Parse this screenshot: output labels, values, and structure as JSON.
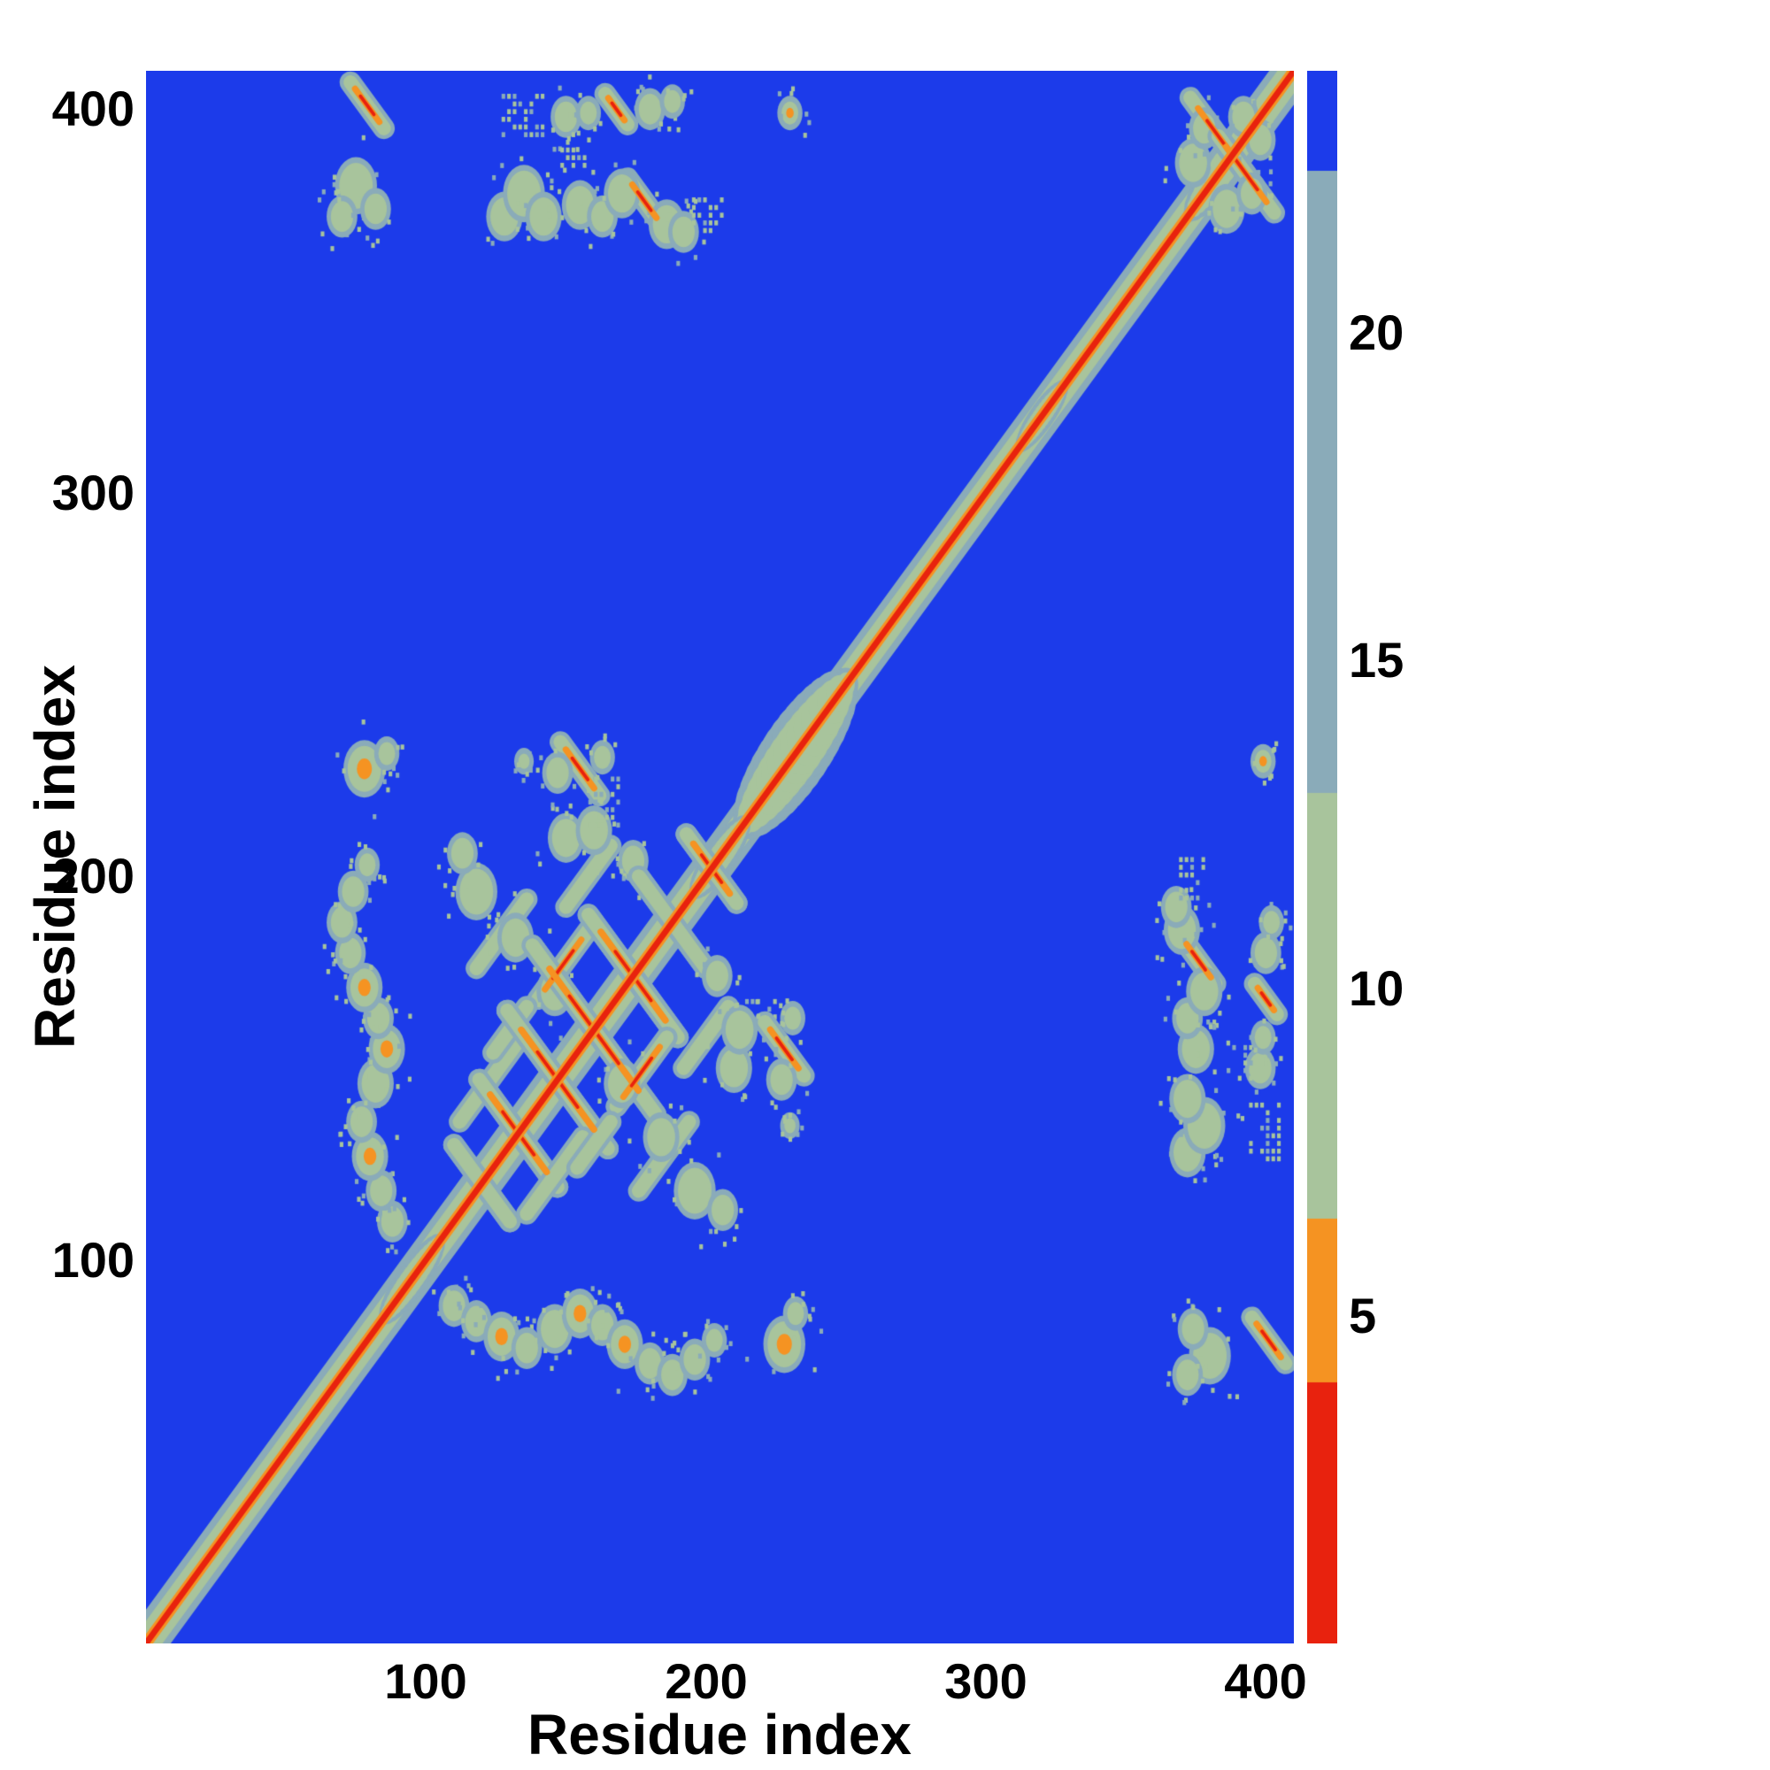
{
  "chart_data": {
    "type": "heatmap",
    "title": "",
    "xlabel": "Residue index",
    "ylabel": "Residue index",
    "x_range": [
      0,
      410
    ],
    "y_range": [
      0,
      410
    ],
    "x_ticks": [
      100,
      200,
      300,
      400
    ],
    "y_ticks": [
      100,
      200,
      300,
      400
    ],
    "x_tick_labels": [
      "100",
      "200",
      "300",
      "400"
    ],
    "y_tick_labels": [
      "100",
      "200",
      "300",
      "400"
    ],
    "grid": false,
    "legend": "colorbar-right",
    "colorbar": {
      "range": [
        0,
        24
      ],
      "ticks": [
        5,
        10,
        15,
        20
      ],
      "tick_labels": [
        "5",
        "10",
        "15",
        "20"
      ],
      "segments": [
        {
          "from": 0,
          "to": 4,
          "color": "red"
        },
        {
          "from": 4,
          "to": 6.5,
          "color": "orange"
        },
        {
          "from": 6.5,
          "to": 13,
          "color": "sage"
        },
        {
          "from": 13,
          "to": 22.5,
          "color": "slate"
        },
        {
          "from": 22.5,
          "to": 24,
          "color": "blue"
        }
      ]
    },
    "palette": {
      "blue": "#1c3bea",
      "slate": "#8aabb9",
      "sage": "#a8c49c",
      "orange": "#f59322",
      "red": "#e8220e"
    },
    "heatmap_features": {
      "description": "Symmetric residue-residue contact/distance map; red diagonal of near-zero distance, sage/orange off-diagonal contact clusters on blue (far) background. Features listed once (upper triangle) and mirrored across the diagonal.",
      "diagonal_layers": [
        {
          "color": "slate",
          "width": 12
        },
        {
          "color": "sage",
          "width": 8
        },
        {
          "color": "orange",
          "width": 3.4
        },
        {
          "color": "red",
          "width": 1.8
        }
      ],
      "bulges": [
        {
          "c": 232,
          "a": 18,
          "b": 11
        },
        {
          "c": 205,
          "a": 9,
          "b": 5
        },
        {
          "c": 95,
          "a": 10,
          "b": 5
        },
        {
          "c": 320,
          "a": 8,
          "b": 4
        },
        {
          "c": 385,
          "a": 12,
          "b": 6
        }
      ],
      "streaks": [
        [
          110,
          130,
          130,
          110,
          0
        ],
        [
          119,
          147,
          147,
          119,
          1
        ],
        [
          129,
          165,
          165,
          129,
          1
        ],
        [
          138,
          182,
          182,
          138,
          1
        ],
        [
          158,
          190,
          190,
          158,
          1
        ],
        [
          176,
          200,
          200,
          176,
          0
        ],
        [
          193,
          211,
          211,
          193,
          1
        ],
        [
          112,
          136,
          132,
          156,
          0
        ],
        [
          140,
          168,
          158,
          186,
          1
        ],
        [
          118,
          176,
          136,
          194,
          0
        ],
        [
          150,
          192,
          166,
          208,
          0
        ],
        [
          124,
          154,
          136,
          166,
          0
        ],
        [
          148,
          235,
          162,
          221,
          1
        ],
        [
          73,
          407,
          85,
          395,
          1
        ],
        [
          373,
          403,
          393,
          383,
          1
        ],
        [
          172,
          382,
          184,
          370,
          1
        ],
        [
          164,
          404,
          172,
          396,
          1
        ]
      ],
      "blobs": [
        [
          88,
          110,
          4,
          0
        ],
        [
          84,
          118,
          4,
          0
        ],
        [
          80,
          127,
          5,
          1
        ],
        [
          77,
          136,
          4,
          0
        ],
        [
          82,
          146,
          5,
          0
        ],
        [
          86,
          155,
          5,
          1
        ],
        [
          83,
          163,
          4,
          0
        ],
        [
          78,
          171,
          5,
          1
        ],
        [
          73,
          180,
          4,
          0
        ],
        [
          70,
          188,
          4,
          0
        ],
        [
          74,
          196,
          4,
          0
        ],
        [
          79,
          203,
          3,
          0
        ],
        [
          78,
          228,
          6,
          1
        ],
        [
          86,
          232,
          3,
          0
        ],
        [
          135,
          230,
          2,
          0
        ],
        [
          147,
          227,
          4,
          0
        ],
        [
          163,
          231,
          3,
          0
        ],
        [
          75,
          380,
          6,
          0
        ],
        [
          70,
          372,
          4,
          0
        ],
        [
          82,
          374,
          4,
          0
        ],
        [
          128,
          372,
          5,
          0
        ],
        [
          135,
          378,
          6,
          0
        ],
        [
          142,
          372,
          5,
          0
        ],
        [
          150,
          398,
          4,
          0
        ],
        [
          155,
          375,
          5,
          0
        ],
        [
          158,
          399,
          3,
          0
        ],
        [
          163,
          372,
          4,
          0
        ],
        [
          170,
          378,
          5,
          0
        ],
        [
          186,
          370,
          5,
          0
        ],
        [
          192,
          368,
          4,
          0
        ],
        [
          180,
          400,
          4,
          0
        ],
        [
          188,
          402,
          3,
          0
        ],
        [
          230,
          399,
          3,
          1
        ],
        [
          374,
          386,
          5,
          0
        ],
        [
          392,
          398,
          4,
          0
        ],
        [
          378,
          395,
          4,
          0
        ],
        [
          118,
          196,
          6,
          0
        ],
        [
          132,
          184,
          5,
          0
        ],
        [
          146,
          170,
          5,
          0
        ],
        [
          150,
          210,
          5,
          0
        ],
        [
          160,
          212,
          5,
          0
        ],
        [
          113,
          206,
          4,
          0
        ],
        [
          174,
          204,
          4,
          0
        ]
      ],
      "dot_patches": [
        [
          134,
          399,
          14,
          10
        ],
        [
          200,
          373,
          10,
          8
        ],
        [
          220,
          163,
          12,
          10
        ],
        [
          152,
          390,
          8,
          8
        ]
      ],
      "speckle_seed": 7
    }
  }
}
